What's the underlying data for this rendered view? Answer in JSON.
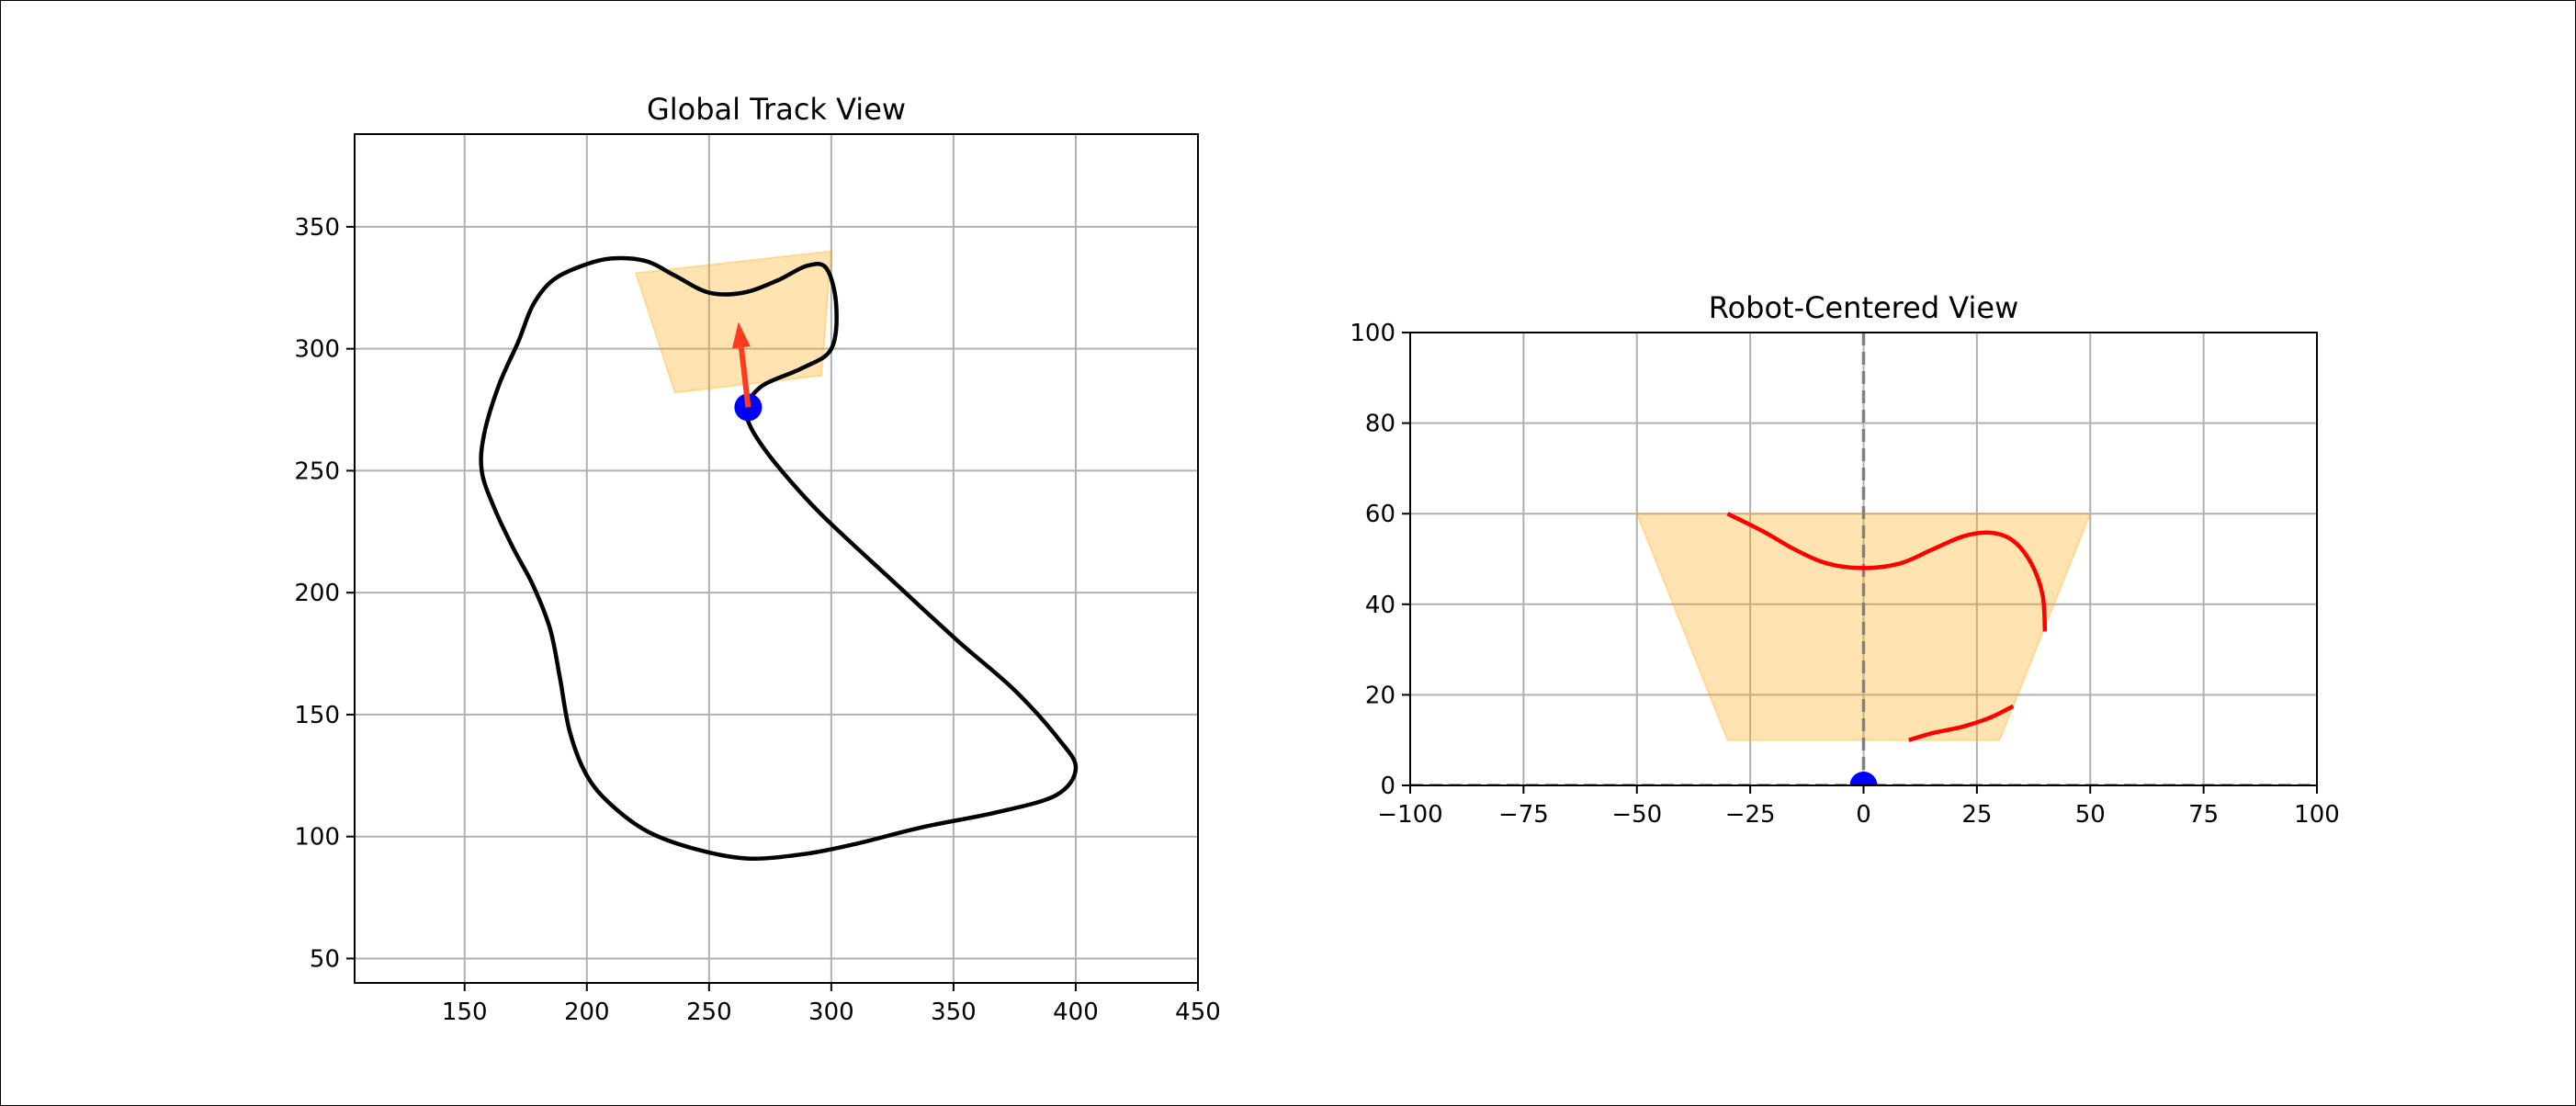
{
  "chart_data": [
    {
      "type": "line",
      "title": "Global Track View",
      "xlabel": "",
      "ylabel": "",
      "xlim": [
        105,
        450
      ],
      "ylim": [
        40,
        388
      ],
      "grid": true,
      "x_ticks": [
        150,
        200,
        250,
        300,
        350,
        400,
        450
      ],
      "y_ticks": [
        50,
        100,
        150,
        200,
        250,
        300,
        350
      ],
      "track": [
        [
          264,
          276
        ],
        [
          272,
          285
        ],
        [
          288,
          292
        ],
        [
          300,
          300
        ],
        [
          302,
          318
        ],
        [
          298,
          333
        ],
        [
          290,
          334
        ],
        [
          278,
          328
        ],
        [
          264,
          323
        ],
        [
          250,
          323
        ],
        [
          236,
          330
        ],
        [
          224,
          336
        ],
        [
          210,
          337
        ],
        [
          198,
          334
        ],
        [
          186,
          328
        ],
        [
          178,
          318
        ],
        [
          172,
          303
        ],
        [
          164,
          285
        ],
        [
          158,
          265
        ],
        [
          157,
          250
        ],
        [
          162,
          235
        ],
        [
          170,
          218
        ],
        [
          178,
          203
        ],
        [
          185,
          185
        ],
        [
          189,
          165
        ],
        [
          193,
          143
        ],
        [
          200,
          125
        ],
        [
          210,
          113
        ],
        [
          225,
          102
        ],
        [
          244,
          95
        ],
        [
          266,
          91
        ],
        [
          290,
          93
        ],
        [
          310,
          97
        ],
        [
          338,
          104
        ],
        [
          368,
          110
        ],
        [
          392,
          117
        ],
        [
          400,
          128
        ],
        [
          393,
          140
        ],
        [
          375,
          160
        ],
        [
          352,
          180
        ],
        [
          326,
          204
        ],
        [
          296,
          232
        ],
        [
          278,
          252
        ],
        [
          268,
          266
        ],
        [
          264,
          276
        ]
      ],
      "view_region": [
        [
          220,
          331
        ],
        [
          300,
          340
        ],
        [
          296,
          289
        ],
        [
          236,
          282
        ]
      ],
      "robot": {
        "x": 266,
        "y": 276
      },
      "heading_arrow": {
        "from": [
          266,
          276
        ],
        "to": [
          262,
          311
        ]
      },
      "colors": {
        "track": "#000000",
        "view_region": "#ffa500",
        "robot": "#0000ff",
        "arrow": "#ff3b1f",
        "grid": "#b0b0b0"
      }
    },
    {
      "type": "line",
      "title": "Robot-Centered View",
      "xlabel": "",
      "ylabel": "",
      "xlim": [
        -100,
        100
      ],
      "ylim": [
        0,
        100
      ],
      "grid": true,
      "x_ticks": [
        -100,
        -75,
        -50,
        -25,
        0,
        25,
        50,
        75,
        100
      ],
      "y_ticks": [
        0,
        20,
        40,
        60,
        80,
        100
      ],
      "x_tick_labels": [
        "−100",
        "−75",
        "−50",
        "−25",
        "0",
        "25",
        "50",
        "75",
        "100"
      ],
      "view_region": [
        [
          -50,
          60
        ],
        [
          50,
          60
        ],
        [
          30,
          10
        ],
        [
          -30,
          10
        ]
      ],
      "segments": [
        [
          [
            -30,
            60
          ],
          [
            -22,
            56
          ],
          [
            -15,
            52
          ],
          [
            -8,
            49
          ],
          [
            0,
            48
          ],
          [
            8,
            49
          ],
          [
            15,
            52
          ],
          [
            22,
            55
          ],
          [
            28,
            55.8
          ],
          [
            33,
            54
          ],
          [
            37,
            49
          ],
          [
            39.5,
            42
          ],
          [
            40,
            34
          ]
        ],
        [
          [
            10,
            10
          ],
          [
            15,
            11.5
          ],
          [
            22,
            13
          ],
          [
            28,
            15
          ],
          [
            33,
            17.5
          ]
        ]
      ],
      "robot": {
        "x": 0,
        "y": 0
      },
      "center_line_x": 0,
      "colors": {
        "segments": "#ff0000",
        "view_region": "#ffa500",
        "robot": "#0000ff",
        "center_line": "#808080",
        "grid": "#b0b0b0"
      }
    }
  ]
}
